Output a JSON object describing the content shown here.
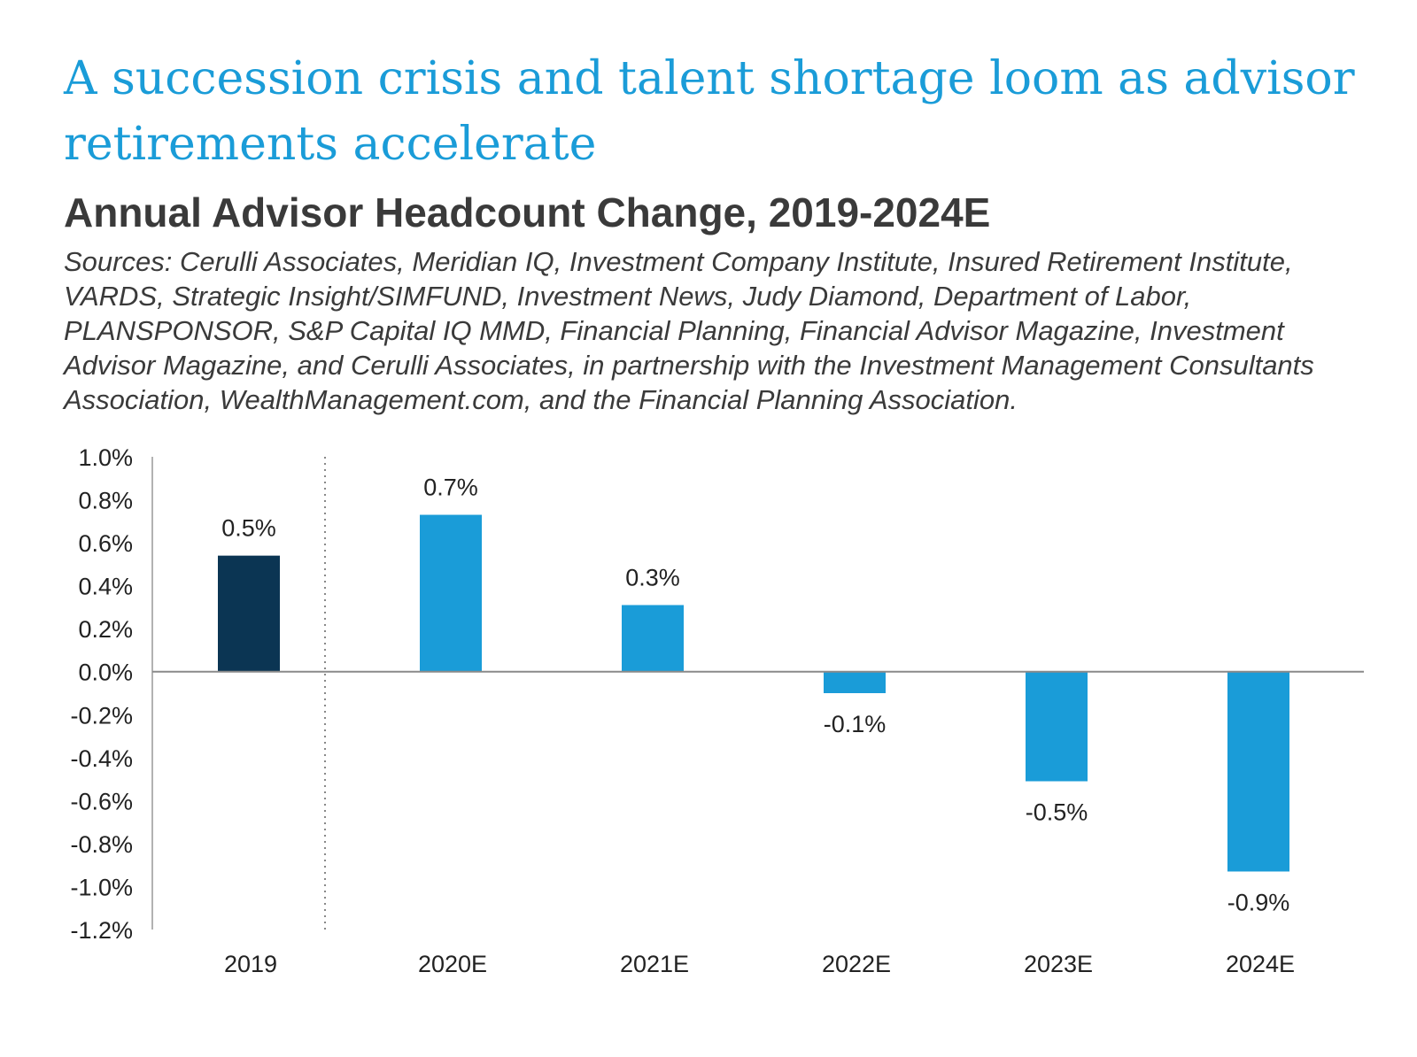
{
  "header": {
    "headline": "A succession crisis and talent shortage loom as advisor retirements accelerate",
    "chart_title": "Annual Advisor Headcount Change, 2019-2024E",
    "sources": "Sources: Cerulli Associates, Meridian IQ, Investment Company Institute, Insured Retirement Institute, VARDS, Strategic Insight/SIMFUND, Investment News, Judy Diamond, Department of Labor, PLANSPONSOR, S&P Capital IQ MMD, Financial Planning, Financial Advisor Magazine, Investment Advisor Magazine, and Cerulli Associates, in partnership with the Investment Management Consultants Association, WealthManagement.com, and the Financial Planning Association."
  },
  "colors": {
    "headline": "#1a9cd8",
    "title_text": "#3a3a3a",
    "actual_bar": "#0b3553",
    "estimate_bar": "#1a9cd8",
    "axis": "#999999",
    "zero_line": "#8a8a8a",
    "divider": "#888888"
  },
  "chart_data": {
    "type": "bar",
    "categories": [
      "2019",
      "2020E",
      "2021E",
      "2022E",
      "2023E",
      "2024E"
    ],
    "values": [
      0.54,
      0.73,
      0.31,
      -0.1,
      -0.51,
      -0.93
    ],
    "data_labels": [
      "0.5%",
      "0.7%",
      "0.3%",
      "-0.1%",
      "-0.5%",
      "-0.9%"
    ],
    "bar_kinds": [
      "actual",
      "estimate",
      "estimate",
      "estimate",
      "estimate",
      "estimate"
    ],
    "ylim": [
      -1.2,
      1.0
    ],
    "y_ticks": [
      1.0,
      0.8,
      0.6,
      0.4,
      0.2,
      0.0,
      -0.2,
      -0.4,
      -0.6,
      -0.8,
      -1.0,
      -1.2
    ],
    "y_tick_labels": [
      "1.0%",
      "0.8%",
      "0.6%",
      "0.4%",
      "0.2%",
      "0.0%",
      "-0.2%",
      "-0.4%",
      "-0.6%",
      "-0.8%",
      "-1.0%",
      "-1.2%"
    ],
    "grid": false,
    "legend": "none",
    "divider_after_category": "2019"
  }
}
